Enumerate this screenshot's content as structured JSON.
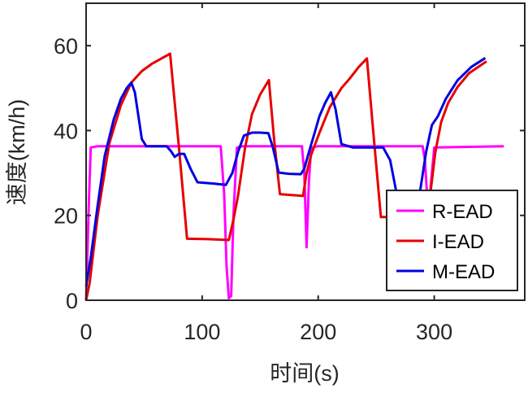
{
  "chart_data": {
    "type": "line",
    "xlabel": "时间(s)",
    "ylabel": "速度(km/h)",
    "xlim": [
      0,
      378
    ],
    "ylim": [
      0,
      70
    ],
    "xticks": [
      0,
      100,
      200,
      300
    ],
    "yticks": [
      0,
      20,
      40,
      60
    ],
    "xtick_labels": [
      "0",
      "100",
      "200",
      "300"
    ],
    "ytick_labels": [
      "0",
      "20",
      "40",
      "60"
    ],
    "grid": false,
    "legend_position": "bottom-right",
    "series": [
      {
        "name": "R-EAD",
        "color": "#FF00FF",
        "x": [
          0,
          2,
          4,
          10,
          60,
          116,
          119,
          121,
          123,
          125,
          127,
          130,
          135,
          186,
          188,
          190,
          192,
          194,
          200,
          290,
          292,
          294,
          296,
          298,
          300,
          360
        ],
        "y": [
          0,
          20,
          36,
          36.3,
          36.3,
          36.3,
          25,
          8,
          0.5,
          1,
          20,
          36,
          36.3,
          36.3,
          30,
          12.5,
          28,
          36,
          36.3,
          36.3,
          33,
          24,
          24,
          30,
          36,
          36.3
        ]
      },
      {
        "name": "I-EAD",
        "color": "#E60000",
        "x": [
          0,
          3,
          10,
          20,
          30,
          39,
          48,
          56.5,
          65,
          72.4,
          80,
          87,
          105,
          123,
          127,
          131,
          137,
          143,
          150,
          157.5,
          162,
          167,
          187,
          190,
          194,
          201,
          210,
          220,
          227,
          235,
          242,
          248,
          254,
          275,
          292,
          297,
          301,
          306,
          312,
          320,
          330,
          345
        ],
        "y": [
          0,
          4,
          20,
          37,
          46,
          51.3,
          54,
          55.7,
          57,
          58.1,
          36,
          14.5,
          14.4,
          14.2,
          19,
          24.7,
          36,
          43.9,
          48.5,
          51.9,
          38,
          25,
          24.6,
          30,
          34.3,
          39.4,
          45.5,
          50,
          52.2,
          55,
          57,
          38,
          19.6,
          19.6,
          19.6,
          26,
          35,
          42,
          46.5,
          50.2,
          53.5,
          56.3
        ]
      },
      {
        "name": "M-EAD",
        "color": "#0000E0",
        "x": [
          0,
          4,
          9.8,
          16,
          23.8,
          30,
          35,
          39,
          42,
          44.8,
          48,
          51.9,
          60,
          69.4,
          73,
          76.4,
          80,
          84.5,
          90,
          96,
          110,
          120.5,
          126,
          131,
          136,
          143,
          150,
          157,
          161,
          166,
          175,
          185,
          188,
          192,
          197,
          201,
          206,
          211,
          215,
          220,
          230,
          256,
          262,
          267,
          272,
          278,
          283,
          288,
          293,
          298,
          303,
          310,
          320,
          332,
          344
        ],
        "y": [
          3.3,
          10,
          22,
          34,
          42.6,
          47.5,
          50,
          51.3,
          49,
          43.9,
          38,
          36.3,
          36.3,
          36.3,
          35.2,
          33.8,
          34.5,
          34.5,
          31,
          27.8,
          27.5,
          27.2,
          30,
          35,
          38.8,
          39.5,
          39.5,
          39.4,
          36,
          30.1,
          29.8,
          29.7,
          31,
          34.9,
          39.5,
          43.3,
          46.5,
          49,
          45,
          36.8,
          36,
          36,
          33,
          26,
          21.5,
          21,
          21.5,
          26,
          35,
          41.3,
          43.3,
          47.5,
          51.8,
          55,
          57.1
        ]
      }
    ]
  }
}
